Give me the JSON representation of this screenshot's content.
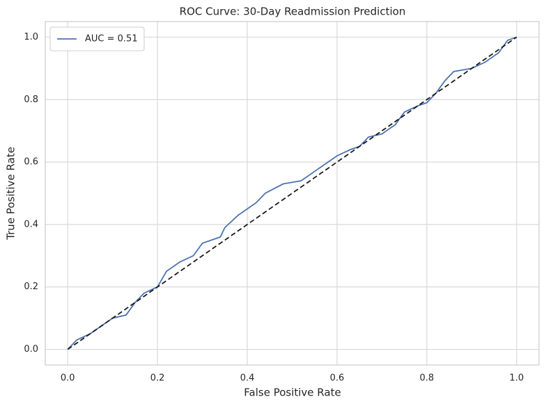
{
  "chart_data": {
    "type": "line",
    "title": "ROC Curve: 30-Day Readmission Prediction",
    "x_label": "False Positive Rate",
    "y_label": "True Positive Rate",
    "xlim": [
      -0.05,
      1.05
    ],
    "ylim": [
      -0.05,
      1.05
    ],
    "xticks": [
      {
        "value": 0,
        "label": "0.0"
      },
      0.2,
      0.4,
      0.6,
      0.8,
      {
        "value": 1,
        "label": "1.0"
      }
    ],
    "yticks": [
      {
        "value": 0,
        "label": "0.0"
      },
      0.2,
      0.4,
      0.6,
      0.8,
      {
        "value": 1,
        "label": "1.0"
      }
    ],
    "grid": true,
    "legend": "upper left",
    "series": [
      {
        "name": "AUC = 0.51",
        "color": "#4c72b0",
        "x": [
          0,
          0.02,
          0.05,
          0.08,
          0.1,
          0.13,
          0.15,
          0.17,
          0.2,
          0.22,
          0.25,
          0.28,
          0.3,
          0.34,
          0.35,
          0.38,
          0.4,
          0.42,
          0.44,
          0.48,
          0.52,
          0.55,
          0.58,
          0.6,
          0.63,
          0.65,
          0.67,
          0.7,
          0.73,
          0.75,
          0.78,
          0.8,
          0.82,
          0.84,
          0.86,
          0.9,
          0.93,
          0.96,
          0.98,
          1
        ],
        "values": [
          0,
          0.03,
          0.05,
          0.08,
          0.1,
          0.11,
          0.15,
          0.18,
          0.2,
          0.25,
          0.28,
          0.3,
          0.34,
          0.36,
          0.39,
          0.43,
          0.45,
          0.47,
          0.5,
          0.53,
          0.54,
          0.57,
          0.6,
          0.62,
          0.64,
          0.65,
          0.68,
          0.69,
          0.72,
          0.76,
          0.78,
          0.79,
          0.82,
          0.86,
          0.89,
          0.9,
          0.92,
          0.95,
          0.99,
          1
        ]
      },
      {
        "color": "#1a1a1a",
        "dashed": true,
        "x": [
          0,
          1
        ],
        "values": [
          0,
          1
        ]
      }
    ]
  }
}
